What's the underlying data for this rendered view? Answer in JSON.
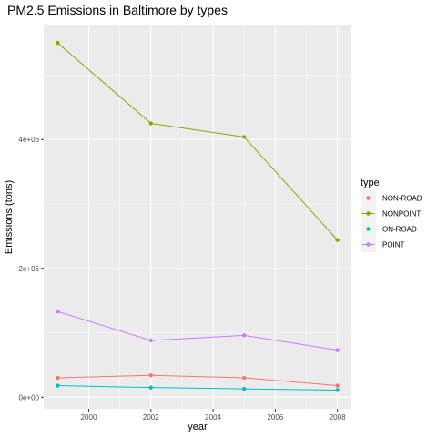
{
  "chart_data": {
    "type": "line",
    "title": "PM2.5 Emissions in Baltimore by types",
    "xlabel": "year",
    "ylabel": "Emissions (tons)",
    "x": [
      1999,
      2002,
      2005,
      2008
    ],
    "xticks": [
      2000,
      2002,
      2004,
      2006,
      2008
    ],
    "xtick_labels": [
      "2000",
      "2002",
      "2004",
      "2006",
      "2008"
    ],
    "xlim": [
      1998.55,
      2008.45
    ],
    "yticks": [
      0,
      2000000,
      4000000
    ],
    "ytick_labels": [
      "0e+00",
      "2e+06",
      "4e+06"
    ],
    "ylim": [
      -180000,
      5770000
    ],
    "grid": true,
    "legend_title": "type",
    "legend_placement": "right",
    "series": [
      {
        "name": "NON-ROAD",
        "color": "#F8766D",
        "values": [
          300000,
          340000,
          300000,
          180000
        ]
      },
      {
        "name": "NONPOINT",
        "color": "#7CAE00",
        "values": [
          5500000,
          4250000,
          4040000,
          2440000
        ]
      },
      {
        "name": "ON-ROAD",
        "color": "#00BFC4",
        "values": [
          180000,
          150000,
          130000,
          110000
        ]
      },
      {
        "name": "POINT",
        "color": "#C77CFF",
        "values": [
          1330000,
          880000,
          960000,
          730000
        ]
      }
    ]
  }
}
